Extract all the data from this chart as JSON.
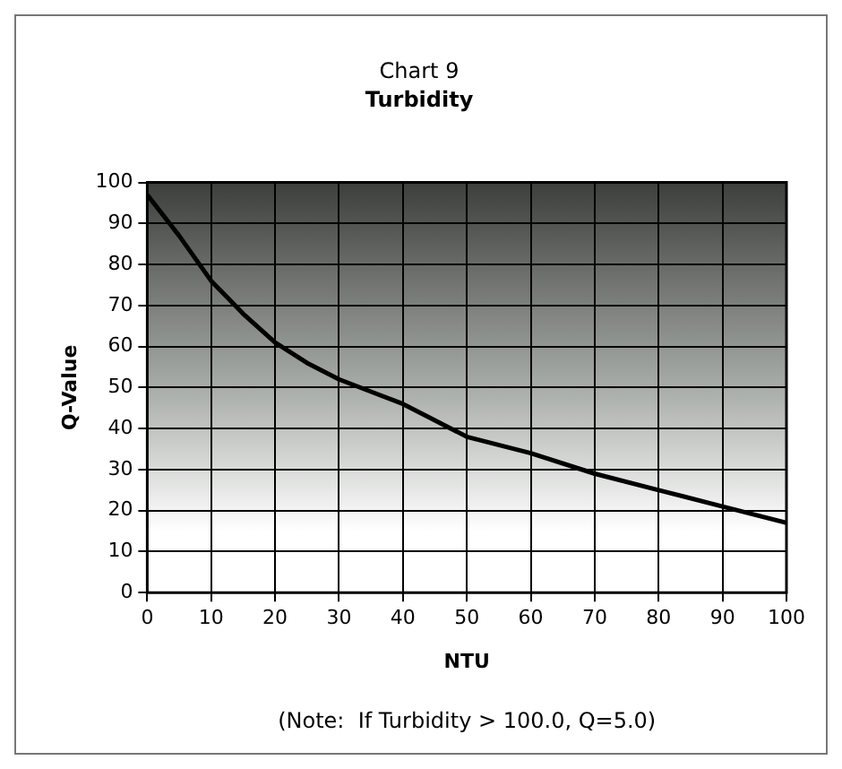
{
  "chart_data": {
    "type": "line",
    "title": "Chart 9",
    "subtitle": "Turbidity",
    "xlabel": "NTU",
    "ylabel": "Q-Value",
    "x": [
      0,
      5,
      10,
      15,
      20,
      25,
      30,
      35,
      40,
      45,
      50,
      60,
      70,
      80,
      90,
      100
    ],
    "series": [
      {
        "color": "#000000",
        "values": [
          97,
          87,
          76,
          68,
          61,
          56,
          52,
          49,
          46,
          42,
          38,
          34,
          29,
          25,
          21,
          17
        ]
      }
    ],
    "xlim": [
      0,
      100
    ],
    "xticks": [
      0,
      10,
      20,
      30,
      40,
      50,
      60,
      70,
      80,
      90,
      100
    ],
    "ylim": [
      0,
      100
    ],
    "yticks": [
      0,
      10,
      20,
      30,
      40,
      50,
      60,
      70,
      80,
      90,
      100
    ],
    "grid": true,
    "legend": false,
    "marker": "none",
    "line_style": "solid",
    "annotations": [
      "(Note:  If Turbidity > 100.0, Q=5.0)"
    ]
  }
}
